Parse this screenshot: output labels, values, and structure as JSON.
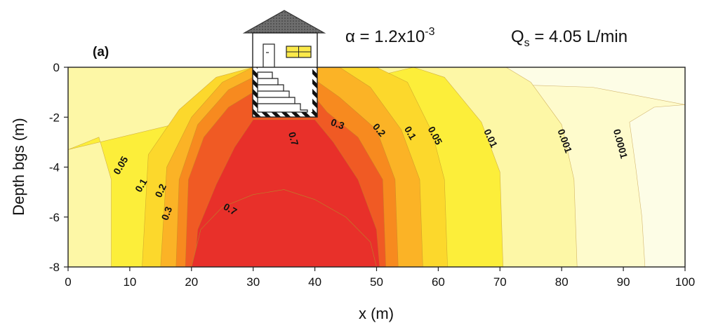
{
  "chart_data": {
    "type": "heatmap",
    "panel_label": "(a)",
    "title_parts": {
      "alpha_prefix": "α = 1.2x10",
      "alpha_exp": "-3",
      "q_symbol": "Q",
      "q_sub": "s",
      "q_value": " = 4.05 L/min"
    },
    "xlabel": "x (m)",
    "ylabel": "Depth bgs (m)",
    "xlim": [
      0,
      100
    ],
    "ylim": [
      -8,
      0
    ],
    "x_ticks": [
      0,
      10,
      20,
      30,
      40,
      50,
      60,
      70,
      80,
      90,
      100
    ],
    "y_ticks": [
      0,
      -2,
      -4,
      -6,
      -8
    ],
    "x_tick_labels": [
      "0",
      "10",
      "20",
      "30",
      "40",
      "50",
      "60",
      "70",
      "80",
      "90",
      "100"
    ],
    "y_tick_labels": [
      "0",
      "-2",
      "-4",
      "-6",
      "-8"
    ],
    "building": {
      "x_range": [
        30,
        40
      ],
      "depth_bottom": -2
    },
    "contour_levels": [
      0.7,
      0.3,
      0.2,
      0.1,
      0.05,
      0.01,
      0.001,
      0.0001
    ],
    "contour_colors": [
      "#e8302a",
      "#f05a24",
      "#f78a1f",
      "#fbb326",
      "#fcd82c",
      "#fcee3a",
      "#fdf7a6",
      "#fefbcc",
      "#fdfde6"
    ],
    "contours": [
      {
        "level": 0.0001,
        "label": "0.0001",
        "label_at": [
          89,
          -3.1
        ],
        "label_rotation": 75,
        "right": [
          [
            100,
            -1.5
          ],
          [
            95,
            -1.6
          ],
          [
            91,
            -2.2
          ],
          [
            92,
            -4
          ],
          [
            93,
            -6
          ],
          [
            93.5,
            -8
          ]
        ],
        "left": [
          [
            0,
            -2.3
          ],
          [
            3,
            -1.6
          ],
          [
            10,
            -0.8
          ],
          [
            20,
            -0.6
          ],
          [
            30,
            -0.5
          ]
        ]
      },
      {
        "level": 0.001,
        "label": "0.001",
        "label_at": [
          80,
          -3.0
        ],
        "label_rotation": 70,
        "right": [
          [
            71,
            0
          ],
          [
            75,
            -0.6
          ],
          [
            80,
            -2.3
          ],
          [
            82,
            -4.5
          ],
          [
            82.5,
            -8
          ]
        ],
        "left": []
      },
      {
        "level": 0.01,
        "label": "0.01",
        "label_at": [
          68,
          -2.9
        ],
        "label_rotation": 65,
        "right": [
          [
            56,
            0
          ],
          [
            61,
            -0.4
          ],
          [
            67,
            -2.2
          ],
          [
            70,
            -4.2
          ],
          [
            70.5,
            -8
          ]
        ],
        "left": [
          [
            0,
            -3.3
          ],
          [
            5,
            -2.8
          ],
          [
            7,
            -4.5
          ],
          [
            7,
            -8
          ]
        ]
      },
      {
        "level": 0.05,
        "label": "0.05",
        "label_at": [
          59,
          -2.8
        ],
        "label_rotation": 62,
        "right": [
          [
            50,
            0
          ],
          [
            55,
            -0.6
          ],
          [
            59,
            -2.6
          ],
          [
            61,
            -4.5
          ],
          [
            61.5,
            -8
          ]
        ],
        "left": [
          [
            30,
            0
          ],
          [
            24,
            -0.4
          ],
          [
            18,
            -1.7
          ],
          [
            13,
            -3.5
          ],
          [
            12,
            -8
          ]
        ]
      },
      {
        "level": 0.1,
        "label": "0.1",
        "label_at": [
          55,
          -2.7
        ],
        "label_rotation": 60,
        "right": [
          [
            44,
            0
          ],
          [
            49,
            -0.8
          ],
          [
            54,
            -2.5
          ],
          [
            57,
            -4.5
          ],
          [
            57.5,
            -8
          ]
        ],
        "left": [
          [
            30,
            0.0
          ],
          [
            25,
            -0.6
          ],
          [
            20,
            -2.0
          ],
          [
            16,
            -4.0
          ],
          [
            15,
            -8
          ]
        ]
      },
      {
        "level": 0.2,
        "label": "0.2",
        "label_at": [
          50,
          -2.6
        ],
        "label_rotation": 50,
        "right": [
          [
            40,
            -0.5
          ],
          [
            44,
            -1.2
          ],
          [
            50,
            -2.5
          ],
          [
            53,
            -4.5
          ],
          [
            53.5,
            -8
          ]
        ],
        "left": [
          [
            30,
            -0.4
          ],
          [
            26,
            -0.9
          ],
          [
            21,
            -2.3
          ],
          [
            18,
            -4.5
          ],
          [
            17.5,
            -8
          ]
        ]
      },
      {
        "level": 0.3,
        "label": "0.3",
        "label_at": [
          43.5,
          -2.4
        ],
        "label_rotation": 20,
        "right": [
          [
            40,
            -1.2
          ],
          [
            42,
            -1.8
          ],
          [
            47,
            -2.8
          ],
          [
            51,
            -4.5
          ],
          [
            51.5,
            -8
          ]
        ],
        "left": [
          [
            30,
            -1.0
          ],
          [
            26,
            -1.6
          ],
          [
            22,
            -2.8
          ],
          [
            19.5,
            -4.5
          ],
          [
            19,
            -8
          ]
        ]
      },
      {
        "level": 0.7,
        "label": "0.7",
        "label_at": [
          36,
          -2.9
        ],
        "label_rotation": 75,
        "right": [
          [
            40,
            -2.1
          ],
          [
            43,
            -3.0
          ],
          [
            47,
            -4.5
          ],
          [
            50,
            -6.5
          ],
          [
            50.5,
            -8
          ]
        ],
        "left": [
          [
            30,
            -2.1
          ],
          [
            27,
            -3.2
          ],
          [
            24,
            -4.7
          ],
          [
            21,
            -6.5
          ],
          [
            20.5,
            -8
          ]
        ]
      }
    ],
    "core": {
      "label": "0.7",
      "label_at": [
        26,
        -5.8
      ],
      "label_rotation": 30,
      "outline": [
        [
          20,
          -8
        ],
        [
          21.5,
          -6.5
        ],
        [
          25,
          -5.6
        ],
        [
          30,
          -5.1
        ],
        [
          35,
          -4.9
        ],
        [
          40,
          -5.3
        ],
        [
          45,
          -6.0
        ],
        [
          49,
          -7.0
        ],
        [
          50,
          -8
        ]
      ]
    },
    "inline_labels": [
      {
        "text": "0.05",
        "at": [
          9,
          -4.0
        ],
        "rotation": -60
      },
      {
        "text": "0.1",
        "at": [
          12.3,
          -4.8
        ],
        "rotation": -60
      },
      {
        "text": "0.2",
        "at": [
          15.5,
          -5.0
        ],
        "rotation": -65
      },
      {
        "text": "0.3",
        "at": [
          16.5,
          -5.9
        ],
        "rotation": -70
      }
    ]
  }
}
